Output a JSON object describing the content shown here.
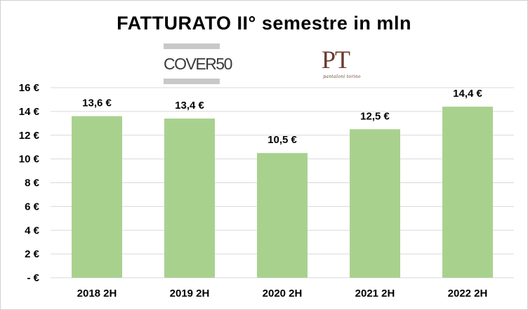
{
  "chart_data": {
    "type": "bar",
    "title": "FATTURATO II° semestre in mln",
    "categories": [
      "2018 2H",
      "2019 2H",
      "2020 2H",
      "2021 2H",
      "2022 2H"
    ],
    "values": [
      13.6,
      13.4,
      10.5,
      12.5,
      14.4
    ],
    "data_labels": [
      "13,6 €",
      "13,4 €",
      "10,5 €",
      "12,5 €",
      "14,4 €"
    ],
    "y_ticks": [
      {
        "value": 0,
        "label": "- €"
      },
      {
        "value": 2,
        "label": "2 €"
      },
      {
        "value": 4,
        "label": "4 €"
      },
      {
        "value": 6,
        "label": "6 €"
      },
      {
        "value": 8,
        "label": "8 €"
      },
      {
        "value": 10,
        "label": "10 €"
      },
      {
        "value": 12,
        "label": "12 €"
      },
      {
        "value": 14,
        "label": "14 €"
      },
      {
        "value": 16,
        "label": "16 €"
      }
    ],
    "ylim": [
      0,
      16
    ],
    "grid": true,
    "legend": "none",
    "bar_color": "#a9d18e",
    "gridline_color": "#d9d9d9"
  },
  "logos": {
    "cover": "COVER50",
    "pt_mono": "PT",
    "pt_sub": "pantaloni torino"
  }
}
